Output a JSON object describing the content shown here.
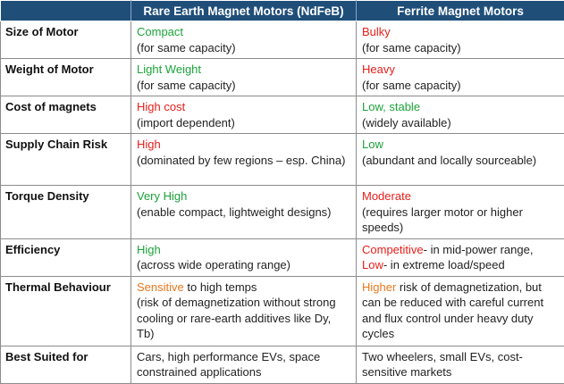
{
  "header": {
    "col0": "",
    "col1": "Rare Earth Magnet Motors (NdFeB)",
    "col2": "Ferrite Magnet Motors"
  },
  "rows": [
    {
      "feature": "Size of Motor",
      "ndfeb": {
        "highlight": "Compact",
        "note": "(for same capacity)"
      },
      "ferrite": {
        "highlight": "Bulky",
        "note": "(for same capacity)"
      }
    },
    {
      "feature": "Weight of Motor",
      "ndfeb": {
        "highlight": "Light Weight",
        "note": "(for same capacity)"
      },
      "ferrite": {
        "highlight": "Heavy",
        "note": "(for same capacity)"
      }
    },
    {
      "feature": "Cost of magnets",
      "ndfeb": {
        "highlight": "High cost",
        "note": "(import dependent)"
      },
      "ferrite": {
        "highlight": "Low, stable",
        "note": "(widely available)"
      }
    },
    {
      "feature": "Supply Chain Risk",
      "ndfeb": {
        "highlight": "High",
        "note": "(dominated by few regions – esp. China)"
      },
      "ferrite": {
        "highlight": "Low",
        "note": "(abundant and locally sourceable)"
      }
    },
    {
      "feature": "Torque Density",
      "ndfeb": {
        "highlight": "Very High",
        "note": "(enable compact, lightweight designs)"
      },
      "ferrite": {
        "highlight": "Moderate",
        "note": "(requires larger motor or higher speeds)"
      }
    },
    {
      "feature": "Efficiency",
      "ndfeb": {
        "highlight": "High",
        "note": "(across wide operating range)"
      },
      "ferrite": {
        "highlight1": "Competitive",
        "rest1": "- in mid-power range,",
        "highlight2": "Low",
        "rest2": "- in extreme load/speed"
      }
    },
    {
      "feature": "Thermal Behaviour",
      "ndfeb": {
        "highlight": "Sensitive",
        "rest": " to high temps",
        "note": "(risk of demagnetization without strong cooling or rare-earth additives like Dy, Tb)"
      },
      "ferrite": {
        "highlight": "Higher",
        "rest": " risk of demagnetization, but can be reduced with careful current and flux control under heavy duty cycles"
      }
    },
    {
      "feature": "Best Suited for",
      "ndfeb": {
        "text": "Cars, high performance EVs, space constrained applications"
      },
      "ferrite": {
        "text": "Two wheelers, small EVs, cost-sensitive markets"
      }
    }
  ],
  "colors": {
    "header_bg": "#1f4e79",
    "advantage": "#1ba33a",
    "disadvantage": "#e6201b",
    "caution": "#e8781e"
  }
}
